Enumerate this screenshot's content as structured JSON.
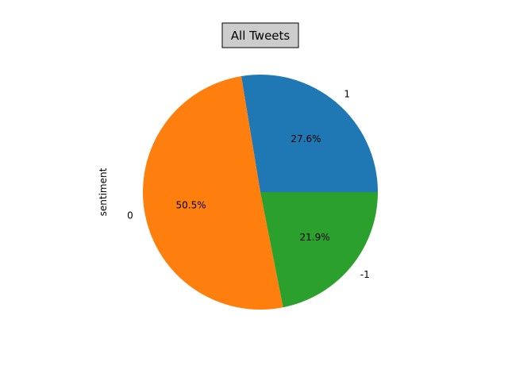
{
  "chart_data": {
    "type": "pie",
    "title": "All Tweets",
    "ylabel": "sentiment",
    "slices": [
      {
        "label": "1",
        "percent": 27.6,
        "percent_label": "27.6%",
        "color": "#1f77b4"
      },
      {
        "label": "0",
        "percent": 50.5,
        "percent_label": "50.5%",
        "color": "#ff7f0e"
      },
      {
        "label": "-1",
        "percent": 21.9,
        "percent_label": "21.9%",
        "color": "#2ca02c"
      }
    ],
    "start_angle_deg": 0,
    "direction": "counterclockwise",
    "title_box": {
      "fill": "#cccccc",
      "edge": "#000000"
    }
  }
}
